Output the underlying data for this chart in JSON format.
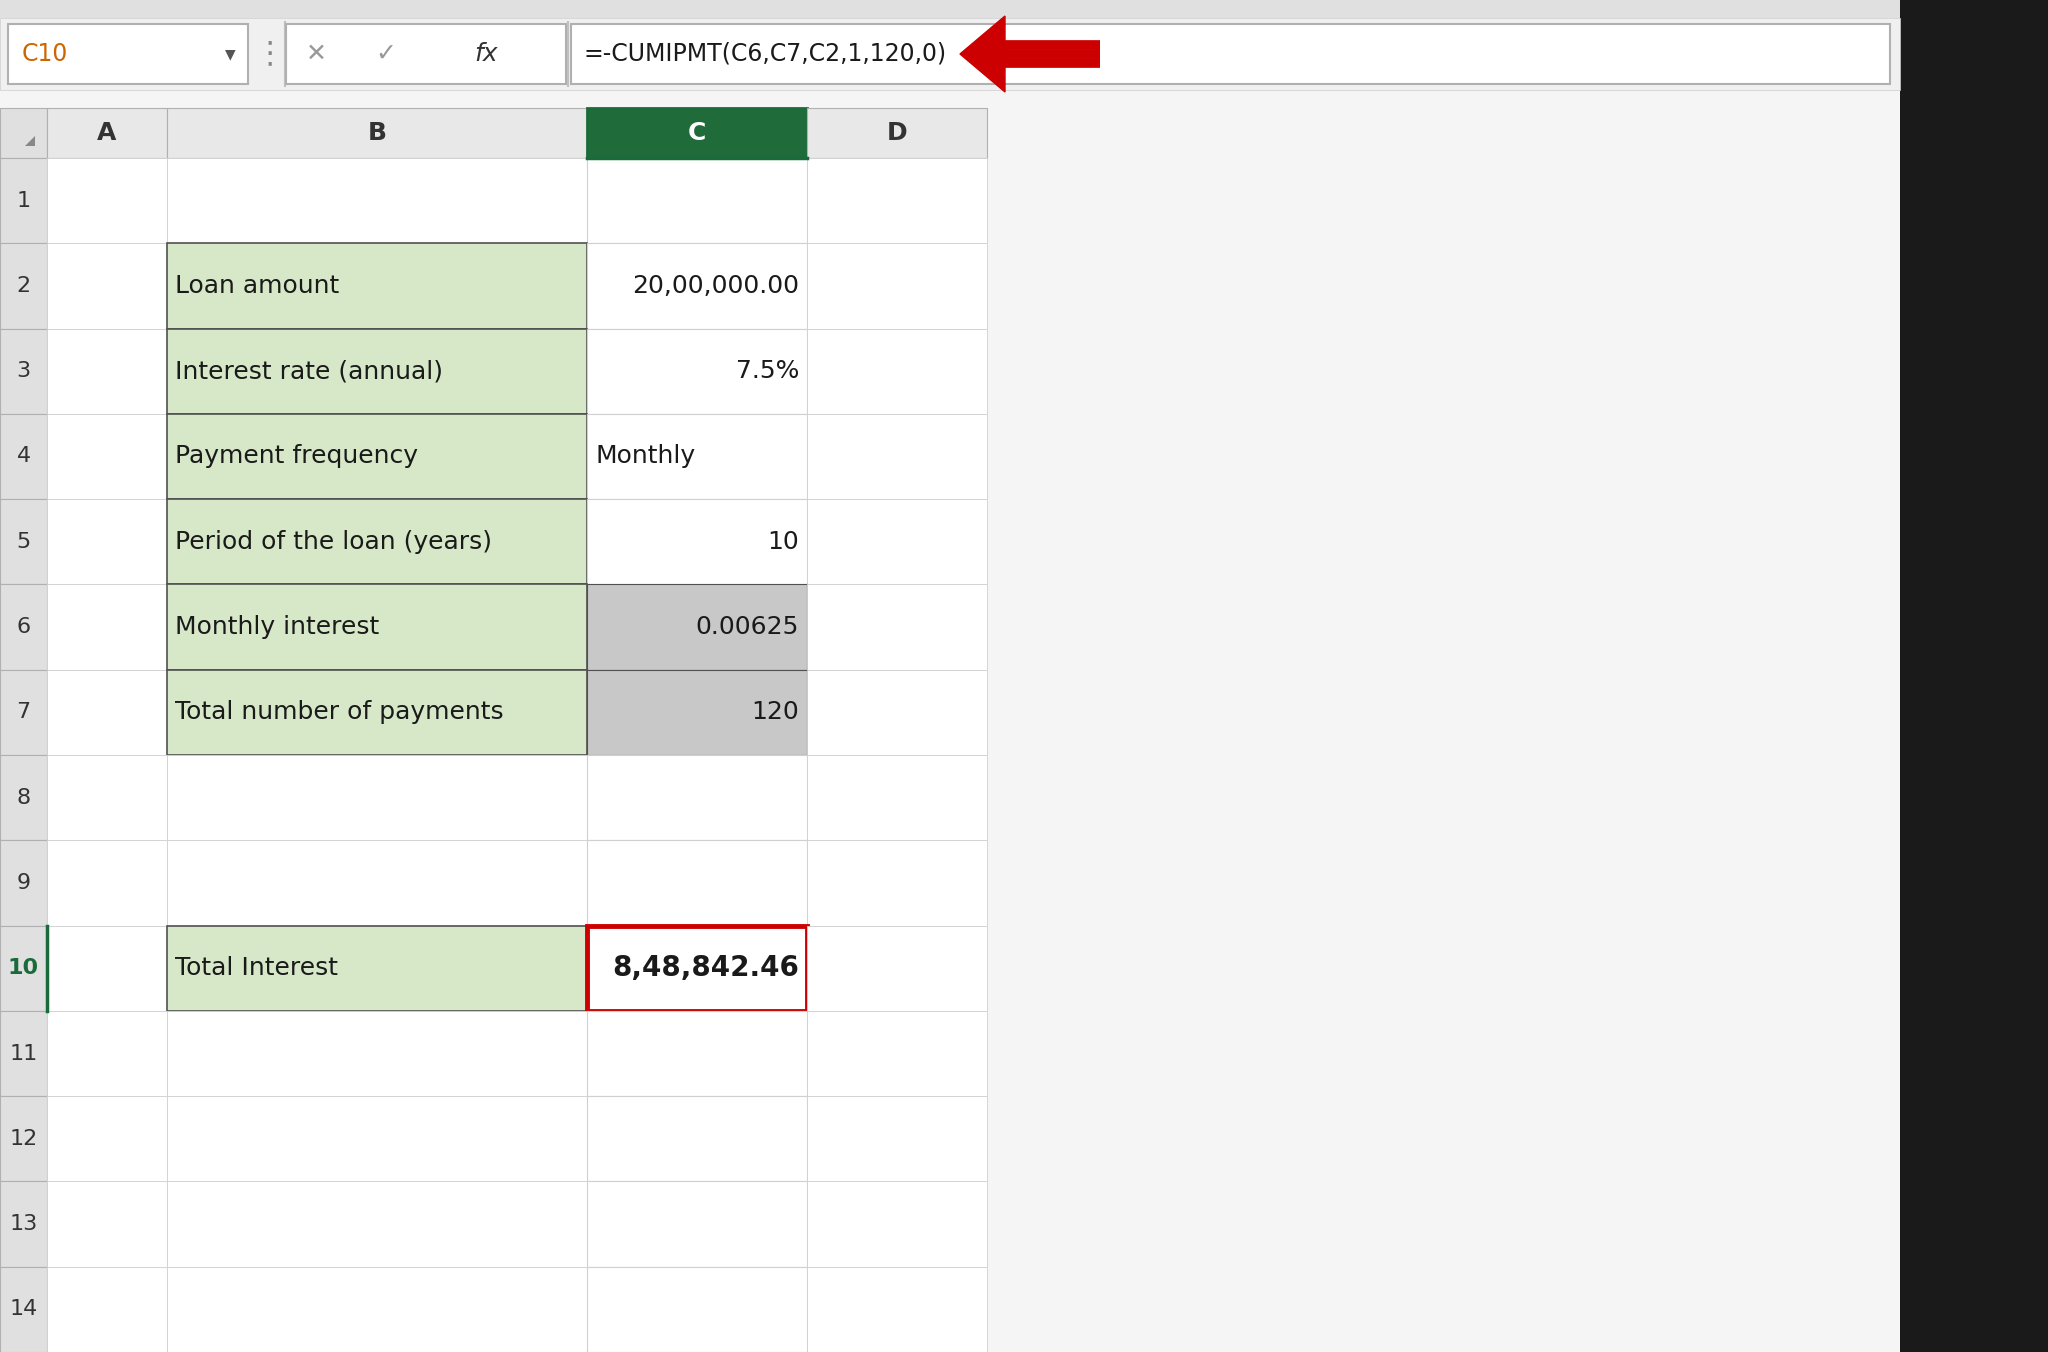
{
  "cell_name_box": "C10",
  "formula_bar_text": "=-CUMIPMT(C6,C7,C2,1,120,0)",
  "green_bg": "#d6e8c8",
  "gray_bg": "#c8c8c8",
  "white_bg": "#ffffff",
  "col_header_bg": "#e8e8e8",
  "selected_col_header_bg": "#1f6b3a",
  "selected_col_header_fg": "#ffffff",
  "row_numbers": [
    "1",
    "2",
    "3",
    "4",
    "5",
    "6",
    "7",
    "8",
    "9",
    "10",
    "11",
    "12",
    "13",
    "14"
  ],
  "b_col_data": [
    "",
    "Loan amount",
    "Interest rate (annual)",
    "Payment frequency",
    "Period of the loan (years)",
    "Monthly interest",
    "Total number of payments",
    "",
    "",
    "Total Interest",
    "",
    "",
    "",
    ""
  ],
  "c_col_data": [
    "",
    "20,00,000.00",
    "7.5%",
    "Monthly",
    "10",
    "0.00625",
    "120",
    "",
    "",
    "8,48,842.46",
    "",
    "",
    "",
    ""
  ],
  "c_col_align": [
    "left",
    "right",
    "right",
    "left",
    "right",
    "right",
    "right",
    "left",
    "left",
    "right",
    "left",
    "left",
    "left",
    "left"
  ],
  "b_col_bg": [
    "white",
    "green",
    "green",
    "green",
    "green",
    "green",
    "green",
    "white",
    "white",
    "green",
    "white",
    "white",
    "white",
    "white"
  ],
  "c_col_bg": [
    "white",
    "white",
    "white",
    "white",
    "white",
    "gray",
    "gray",
    "white",
    "white",
    "white",
    "white",
    "white",
    "white",
    "white"
  ],
  "c10_border_color": "#cc0000",
  "arrow_color": "#cc0000"
}
